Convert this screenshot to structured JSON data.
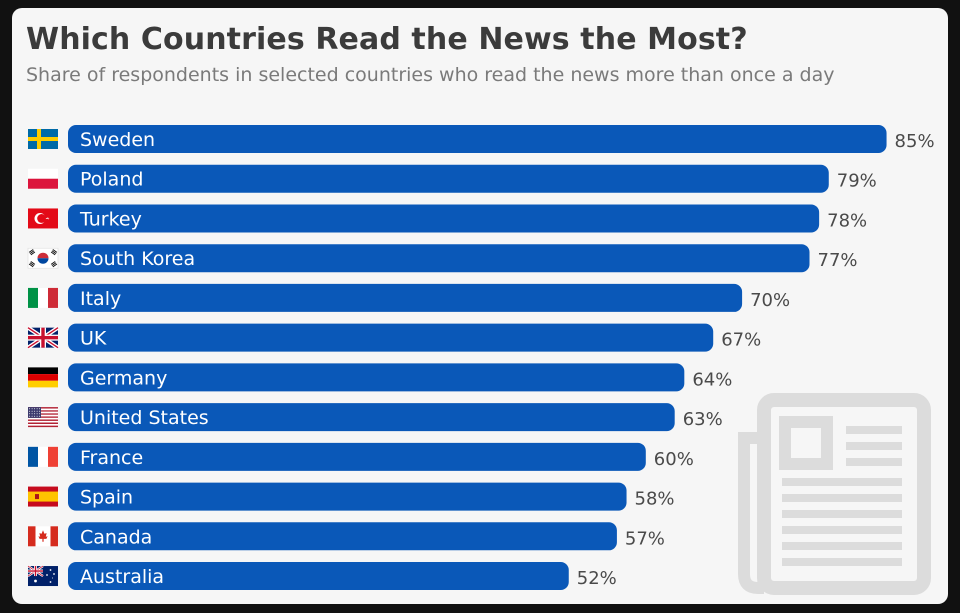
{
  "title": "Which Countries Read the News the Most?",
  "subtitle": "Share of respondents in selected countries who read the news more than once a day",
  "colors": {
    "bar": "#0a58b8",
    "background": "#f6f6f6",
    "icon": "#dcdcdc"
  },
  "chart_data": {
    "type": "bar",
    "orientation": "horizontal",
    "categories": [
      "Sweden",
      "Poland",
      "Turkey",
      "South Korea",
      "Italy",
      "UK",
      "Germany",
      "United States",
      "France",
      "Spain",
      "Canada",
      "Australia"
    ],
    "values": [
      85,
      79,
      78,
      77,
      70,
      67,
      64,
      63,
      60,
      58,
      57,
      52
    ],
    "value_labels": [
      "85%",
      "79%",
      "78%",
      "77%",
      "70%",
      "67%",
      "64%",
      "63%",
      "60%",
      "58%",
      "57%",
      "52%"
    ],
    "unit": "%",
    "flag_icons": [
      "flag-sweden-icon",
      "flag-poland-icon",
      "flag-turkey-icon",
      "flag-south-korea-icon",
      "flag-italy-icon",
      "flag-uk-icon",
      "flag-germany-icon",
      "flag-united-states-icon",
      "flag-france-icon",
      "flag-spain-icon",
      "flag-canada-icon",
      "flag-australia-icon"
    ],
    "grid": false,
    "legend": "none"
  },
  "decoration": {
    "icon": "newspaper-icon"
  }
}
